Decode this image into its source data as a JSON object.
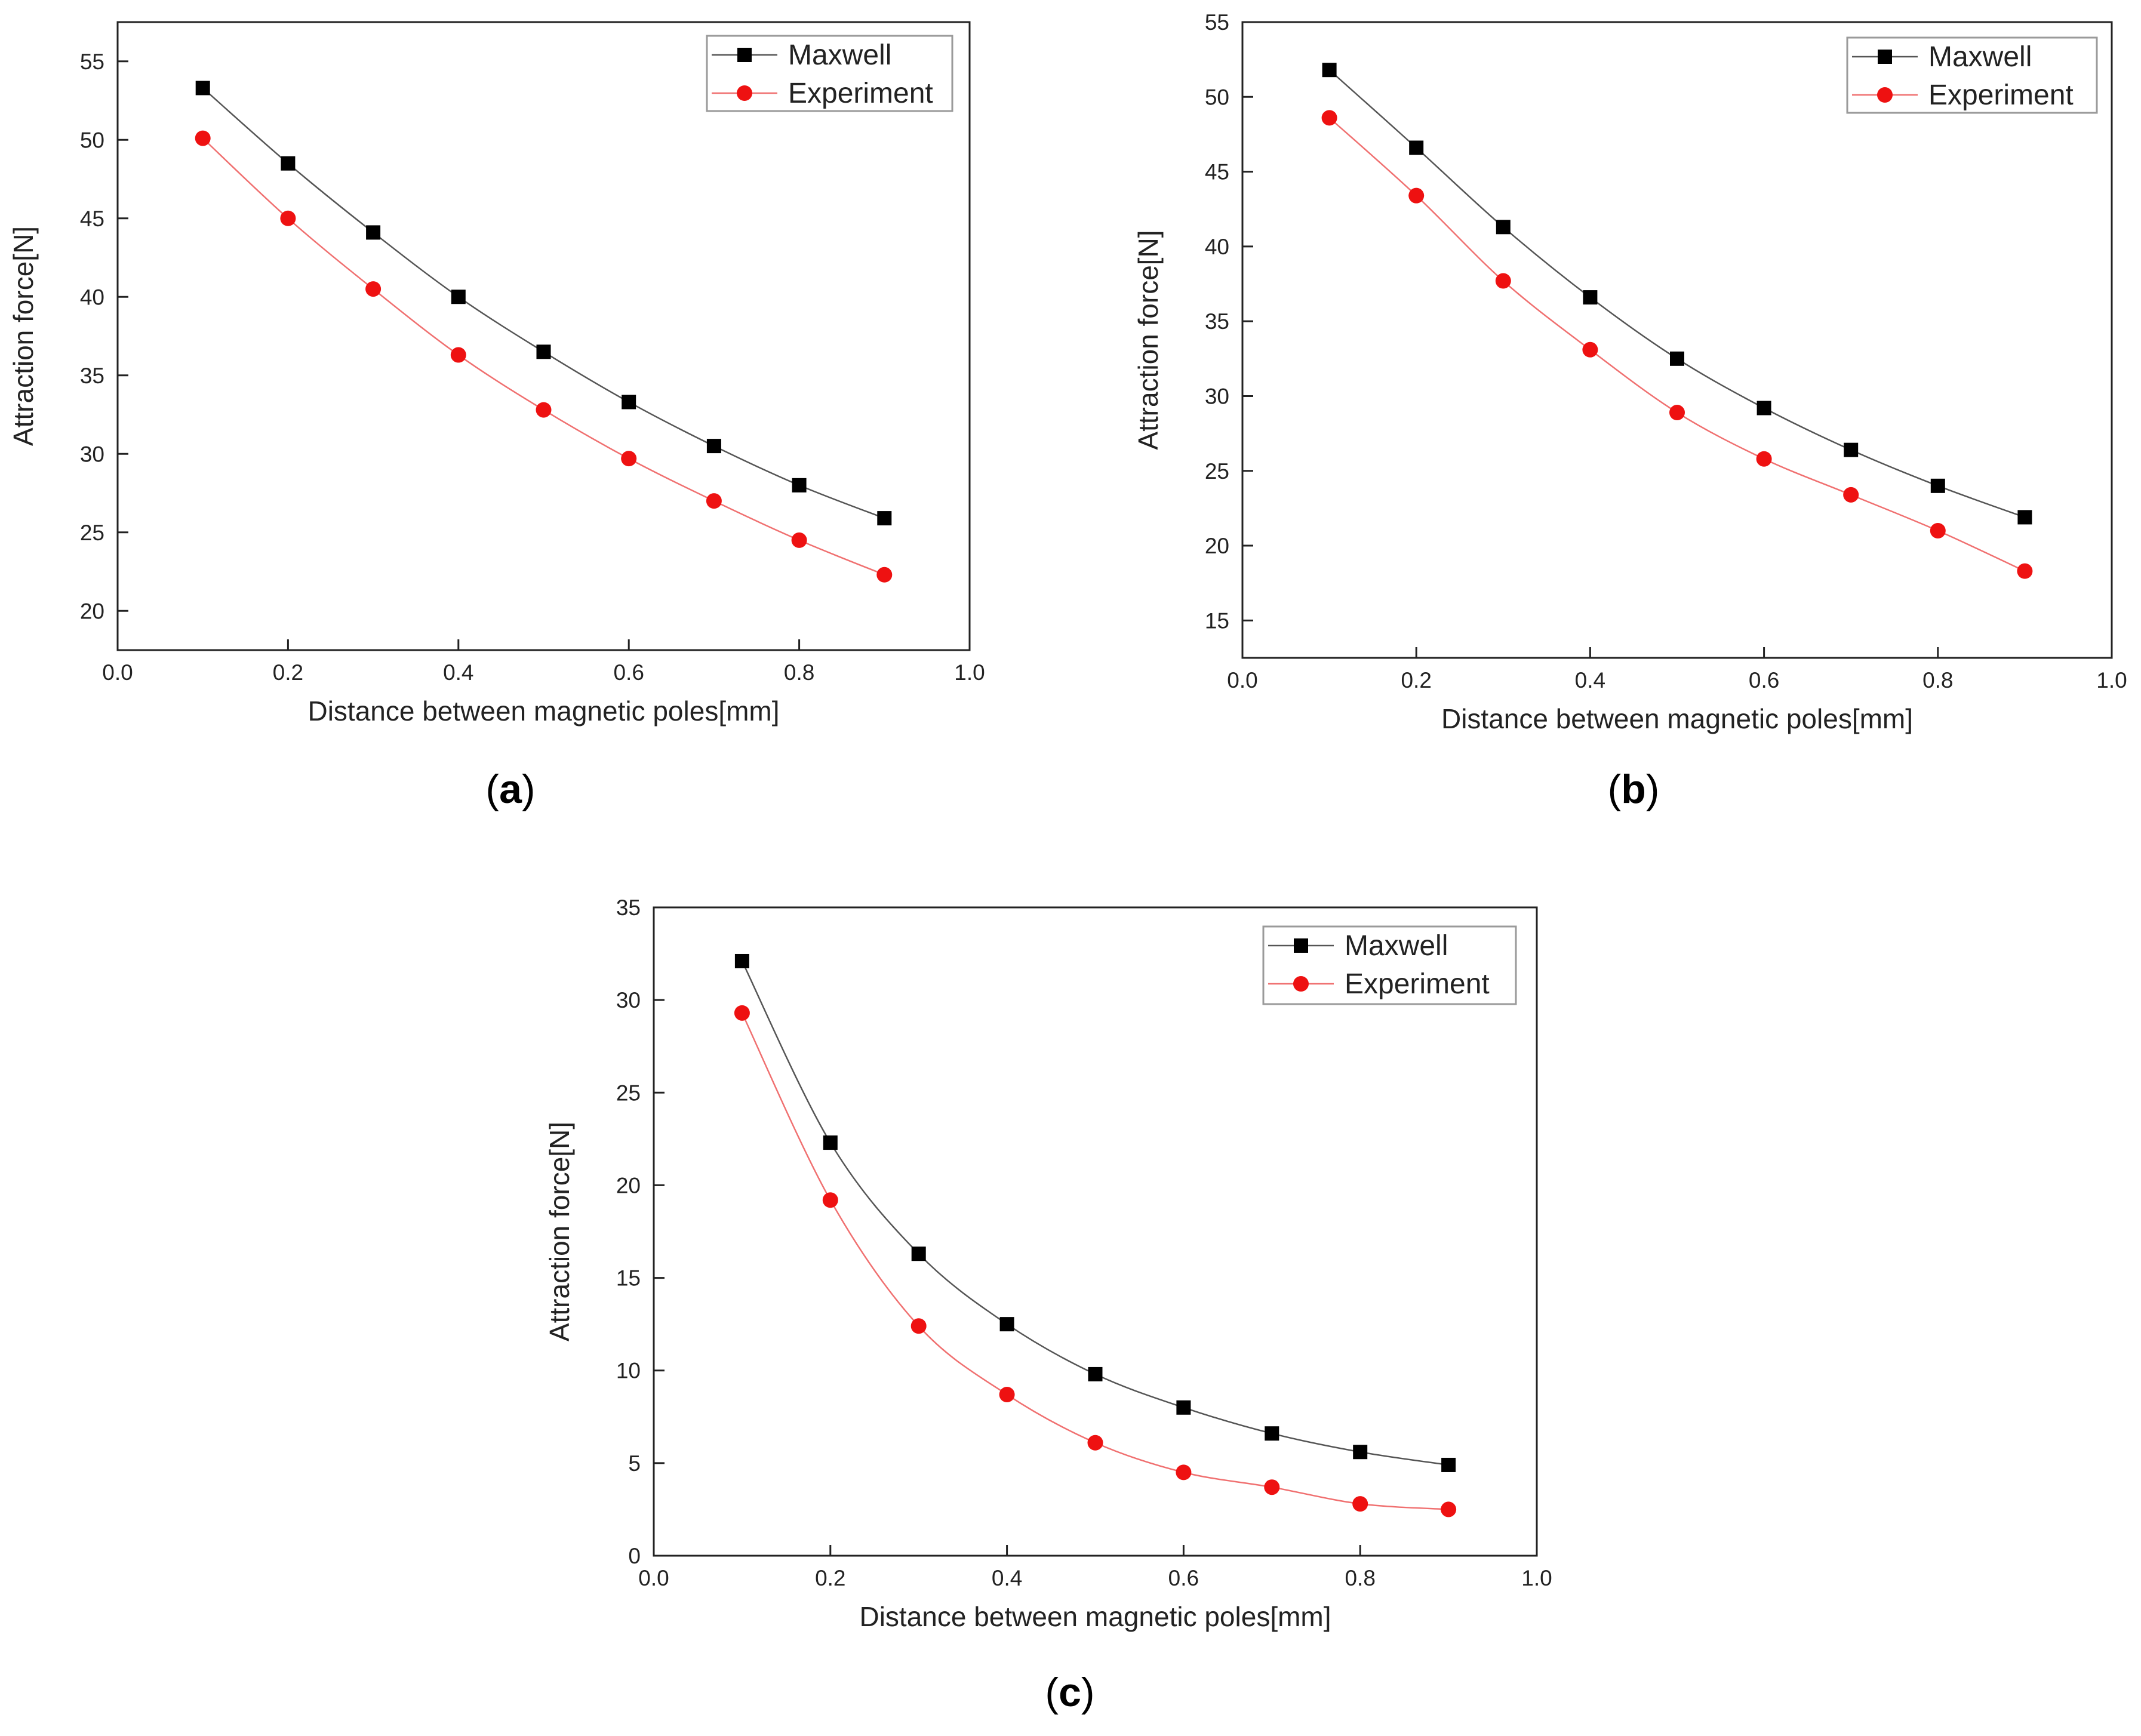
{
  "figure": {
    "colors": {
      "maxwell": "#000000",
      "experiment": "#ee1111",
      "maxwell_line": "#555555",
      "experiment_line": "#f07070",
      "axes": "#222222"
    }
  },
  "chart_data": [
    {
      "type": "line",
      "panel_label": "a",
      "xlabel": "Distance between magnetic poles[mm]",
      "ylabel": "Attraction force[N]",
      "xlim": [
        0.0,
        1.0
      ],
      "ylim": [
        17.5,
        57.5
      ],
      "xticks": [
        "0.0",
        "0.2",
        "0.4",
        "0.6",
        "0.8",
        "1.0"
      ],
      "yticks": [
        "20",
        "25",
        "30",
        "35",
        "40",
        "45",
        "50",
        "55"
      ],
      "legend": "top-right",
      "x": [
        0.1,
        0.2,
        0.3,
        0.4,
        0.5,
        0.6,
        0.7,
        0.8,
        0.9
      ],
      "series": [
        {
          "name": "Maxwell",
          "marker": "square",
          "values": [
            53.3,
            48.5,
            44.1,
            40.0,
            36.5,
            33.3,
            30.5,
            28.0,
            25.9
          ]
        },
        {
          "name": "Experiment",
          "marker": "circle",
          "values": [
            50.1,
            45.0,
            40.5,
            36.3,
            32.8,
            29.7,
            27.0,
            24.5,
            22.3
          ]
        }
      ]
    },
    {
      "type": "line",
      "panel_label": "b",
      "xlabel": "Distance between magnetic poles[mm]",
      "ylabel": "Attraction force[N]",
      "xlim": [
        0.0,
        1.0
      ],
      "ylim": [
        12.5,
        55.0
      ],
      "xticks": [
        "0.0",
        "0.2",
        "0.4",
        "0.6",
        "0.8",
        "1.0"
      ],
      "yticks": [
        "15",
        "20",
        "25",
        "30",
        "35",
        "40",
        "45",
        "50",
        "55"
      ],
      "legend": "top-right",
      "x": [
        0.1,
        0.2,
        0.3,
        0.4,
        0.5,
        0.6,
        0.7,
        0.8,
        0.9
      ],
      "series": [
        {
          "name": "Maxwell",
          "marker": "square",
          "values": [
            51.8,
            46.6,
            41.3,
            36.6,
            32.5,
            29.2,
            26.4,
            24.0,
            21.9
          ]
        },
        {
          "name": "Experiment",
          "marker": "circle",
          "values": [
            48.6,
            43.4,
            37.7,
            33.1,
            28.9,
            25.8,
            23.4,
            21.0,
            18.3
          ]
        }
      ]
    },
    {
      "type": "line",
      "panel_label": "c",
      "xlabel": "Distance between magnetic poles[mm]",
      "ylabel": "Attraction force[N]",
      "xlim": [
        0.0,
        1.0
      ],
      "ylim": [
        0.0,
        35.0
      ],
      "xticks": [
        "0.0",
        "0.2",
        "0.4",
        "0.6",
        "0.8",
        "1.0"
      ],
      "yticks": [
        "0",
        "5",
        "10",
        "15",
        "20",
        "25",
        "30",
        "35"
      ],
      "legend": "top-right",
      "x": [
        0.1,
        0.2,
        0.3,
        0.4,
        0.5,
        0.6,
        0.7,
        0.8,
        0.9
      ],
      "series": [
        {
          "name": "Maxwell",
          "marker": "square",
          "values": [
            32.1,
            22.3,
            16.3,
            12.5,
            9.8,
            8.0,
            6.6,
            5.6,
            4.9
          ]
        },
        {
          "name": "Experiment",
          "marker": "circle",
          "values": [
            29.3,
            19.2,
            12.4,
            8.7,
            6.1,
            4.5,
            3.7,
            2.8,
            2.5
          ]
        }
      ]
    }
  ]
}
